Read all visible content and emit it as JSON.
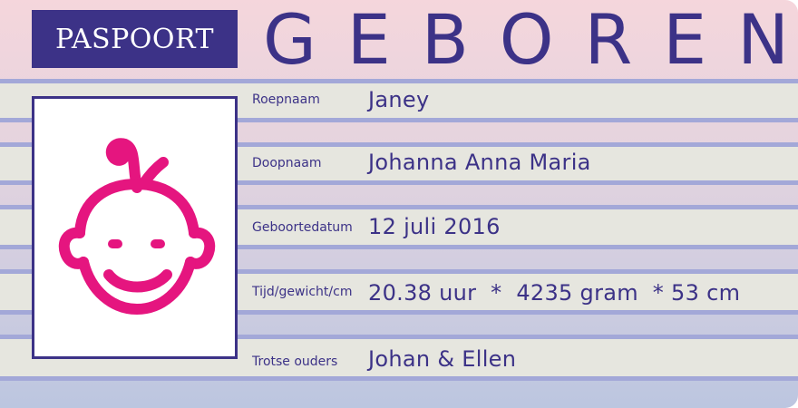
{
  "header": {
    "badge": "PASPOORT",
    "title": "GEBOREN"
  },
  "photo": {
    "icon": "baby-face-icon",
    "color": "#e5157f"
  },
  "fields": [
    {
      "label": "Roepnaam",
      "value": "Janey"
    },
    {
      "label": "Doopnaam",
      "value": "Johanna Anna Maria"
    },
    {
      "label": "Geboortedatum",
      "value": "12 juli 2016"
    },
    {
      "label": "Tijd/gewicht/cm",
      "value": "20.38 uur  *  4235 gram  * 53 cm"
    },
    {
      "label": "Trotse ouders",
      "value": "Johan & Ellen"
    }
  ],
  "colors": {
    "primary": "#3c3287",
    "stripe": "#a3a8d8",
    "row": "#e6e6df",
    "accent": "#e5157f"
  }
}
